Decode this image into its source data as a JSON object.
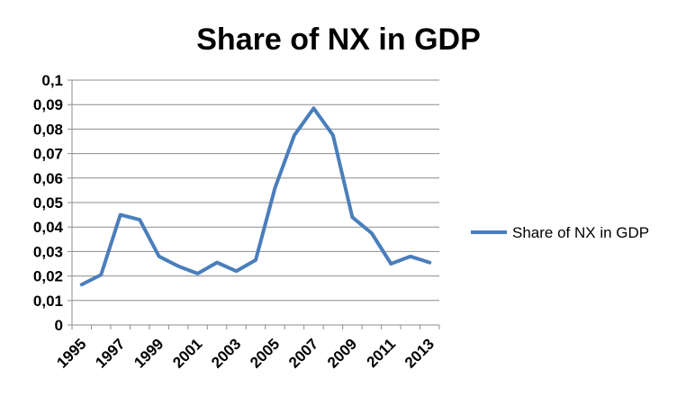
{
  "chart_data": {
    "type": "line",
    "title": "Share of NX in GDP",
    "xlabel": "",
    "ylabel": "",
    "x": [
      1995,
      1996,
      1997,
      1998,
      1999,
      2000,
      2001,
      2002,
      2003,
      2004,
      2005,
      2006,
      2007,
      2008,
      2009,
      2010,
      2011,
      2012,
      2013
    ],
    "x_tick_labels": [
      "1995",
      "1997",
      "1999",
      "2001",
      "2003",
      "2005",
      "2007",
      "2009",
      "2011",
      "2013"
    ],
    "y_tick_labels": [
      "0",
      "0,01",
      "0,02",
      "0,03",
      "0,04",
      "0,05",
      "0,06",
      "0,07",
      "0,08",
      "0,09",
      "0,1"
    ],
    "ylim": [
      0,
      0.1
    ],
    "grid": true,
    "legend_position": "right",
    "series": [
      {
        "name": "Share of NX in GDP",
        "color": "#4a7ebb",
        "values": [
          0.0165,
          0.0205,
          0.045,
          0.043,
          0.028,
          0.024,
          0.021,
          0.0255,
          0.022,
          0.0265,
          0.056,
          0.0775,
          0.0885,
          0.0775,
          0.044,
          0.0375,
          0.025,
          0.028,
          0.0255
        ]
      }
    ]
  }
}
